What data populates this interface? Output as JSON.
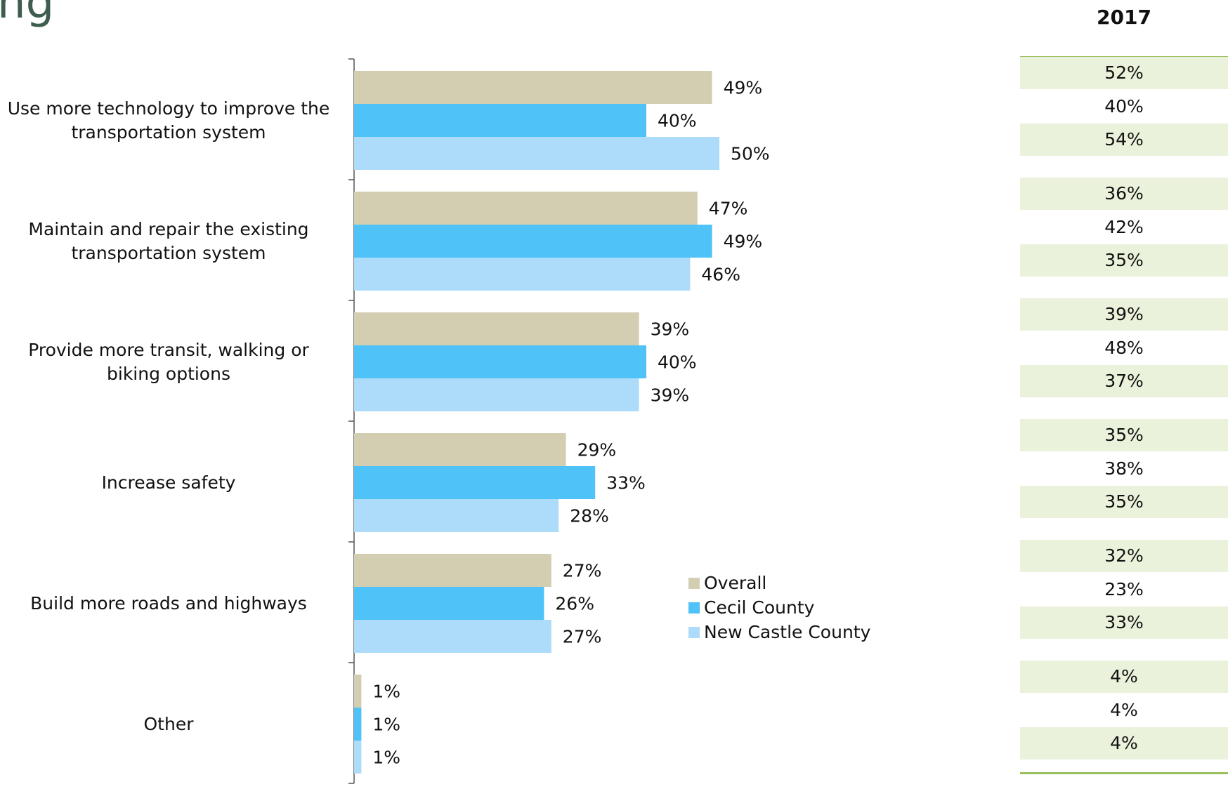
{
  "page": {
    "title_fragment": "ng"
  },
  "legend": [
    {
      "name": "Overall",
      "color": "#d3ceb1"
    },
    {
      "name": "Cecil County",
      "color": "#4fc3f7"
    },
    {
      "name": "New Castle County",
      "color": "#acdcf9"
    }
  ],
  "chart_data": {
    "type": "bar",
    "orientation": "horizontal",
    "categories": [
      "Use more technology to improve the transportation system",
      "Maintain and repair the existing transportation system",
      "Provide more transit, walking or biking options",
      "Increase safety",
      "Build more roads and highways",
      "Other"
    ],
    "series": [
      {
        "name": "Overall",
        "color": "#d3ceb1",
        "values": [
          49,
          47,
          39,
          29,
          27,
          1
        ]
      },
      {
        "name": "Cecil County",
        "color": "#4fc3f7",
        "values": [
          40,
          49,
          40,
          33,
          26,
          1
        ]
      },
      {
        "name": "New Castle County",
        "color": "#acdcf9",
        "values": [
          50,
          46,
          39,
          28,
          27,
          1
        ]
      }
    ],
    "value_suffix": "%",
    "xlim": [
      0,
      100
    ],
    "legend_position": "bottom-center",
    "grid": false
  },
  "side_table": {
    "header": "2017",
    "groups": [
      [
        "52%",
        "40%",
        "54%"
      ],
      [
        "36%",
        "42%",
        "35%"
      ],
      [
        "39%",
        "48%",
        "37%"
      ],
      [
        "35%",
        "38%",
        "35%"
      ],
      [
        "32%",
        "23%",
        "33%"
      ],
      [
        "4%",
        "4%",
        "4%"
      ]
    ]
  }
}
